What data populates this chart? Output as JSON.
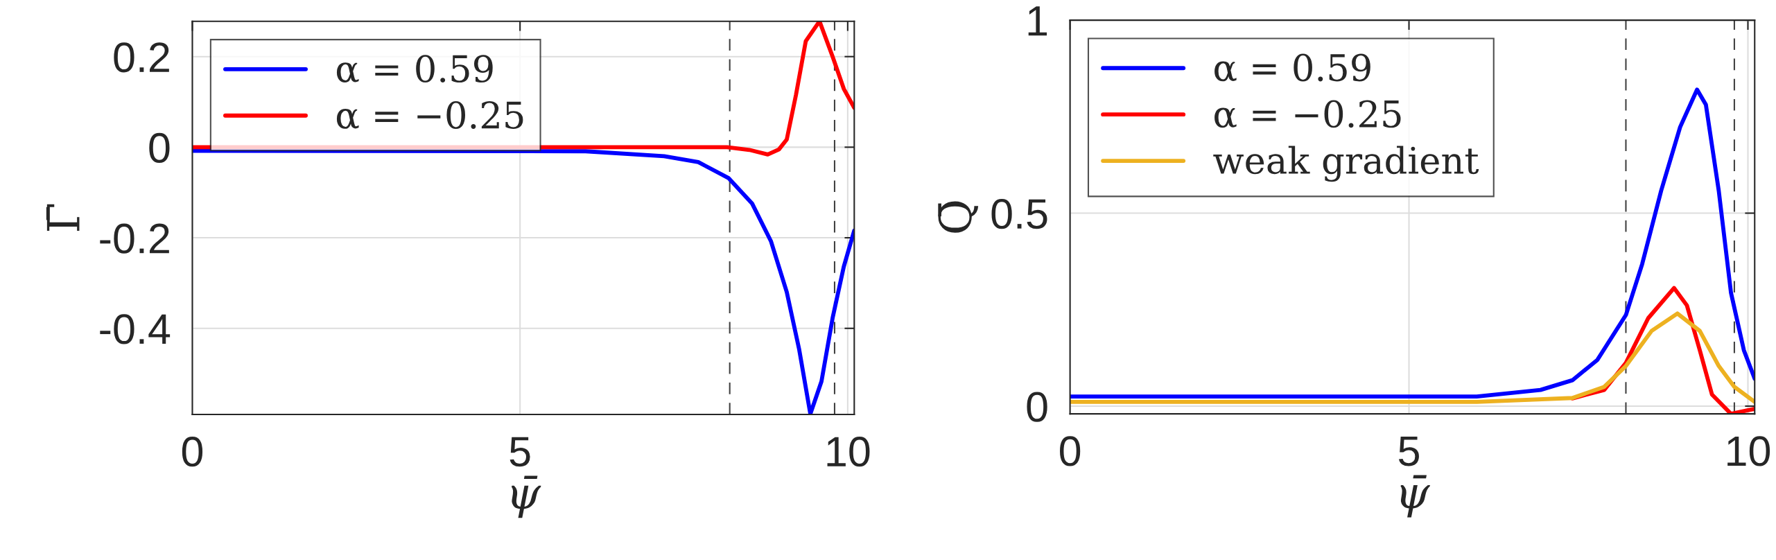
{
  "chart_data": [
    {
      "type": "line",
      "xlabel": "ψ̄",
      "ylabel": "Γ̄",
      "xlim": [
        0,
        10.1
      ],
      "ylim": [
        -0.59,
        0.278
      ],
      "xticks": [
        0,
        5,
        10
      ],
      "yticks": [
        -0.4,
        -0.2,
        0,
        0.2
      ],
      "grid": true,
      "legend": "top left",
      "line_style": "solid",
      "marker": "none",
      "ref_lines": [
        {
          "axis": "x",
          "value": 8.2,
          "color": "#404040",
          "line_style": "dashed"
        },
        {
          "axis": "x",
          "value": 9.8,
          "color": "#404040",
          "line_style": "dashed"
        }
      ],
      "series": [
        {
          "name": "α = 0.59",
          "color": "#0000ff",
          "x": [
            0,
            6,
            7.2,
            7.72,
            8.18,
            8.54,
            8.83,
            9.07,
            9.26,
            9.43,
            9.6,
            9.77,
            9.94,
            10.1
          ],
          "values": [
            -0.008,
            -0.009,
            -0.02,
            -0.033,
            -0.068,
            -0.124,
            -0.208,
            -0.32,
            -0.447,
            -0.589,
            -0.517,
            -0.377,
            -0.264,
            -0.184
          ]
        },
        {
          "name": "α = −0.25",
          "color": "#ff0000",
          "x": [
            0,
            6,
            8.16,
            8.5,
            8.78,
            8.95,
            9.07,
            9.21,
            9.36,
            9.57,
            9.77,
            9.94,
            10.1
          ],
          "values": [
            0,
            0,
            0,
            -0.006,
            -0.016,
            -0.005,
            0.017,
            0.115,
            0.234,
            0.278,
            0.2,
            0.129,
            0.087
          ]
        }
      ]
    },
    {
      "type": "line",
      "xlabel": "ψ̄",
      "ylabel": "Q̄",
      "xlim": [
        0,
        10.1
      ],
      "ylim": [
        -0.02,
        1
      ],
      "xticks": [
        0,
        5,
        10
      ],
      "yticks": [
        0,
        0.5,
        1
      ],
      "grid": true,
      "legend": "top left",
      "line_style": "solid",
      "marker": "none",
      "ref_lines": [
        {
          "axis": "x",
          "value": 8.2,
          "color": "#404040",
          "line_style": "dashed"
        },
        {
          "axis": "x",
          "value": 9.8,
          "color": "#404040",
          "line_style": "dashed"
        }
      ],
      "series": [
        {
          "name": "α = 0.59",
          "color": "#0000ff",
          "x": [
            0,
            3,
            6,
            6.94,
            7.41,
            7.78,
            8.2,
            8.44,
            8.72,
            9.0,
            9.25,
            9.38,
            9.57,
            9.75,
            9.94,
            10.1
          ],
          "values": [
            0.025,
            0.025,
            0.025,
            0.042,
            0.067,
            0.12,
            0.236,
            0.368,
            0.558,
            0.723,
            0.82,
            0.781,
            0.558,
            0.294,
            0.145,
            0.071
          ]
        },
        {
          "name": "α = −0.25",
          "color": "#ff0000",
          "x": [
            7.41,
            7.88,
            8.2,
            8.53,
            8.91,
            9.1,
            9.29,
            9.47,
            9.75,
            10.1
          ],
          "values": [
            0.02,
            0.042,
            0.112,
            0.228,
            0.306,
            0.261,
            0.145,
            0.03,
            -0.02,
            -0.007
          ]
        },
        {
          "name": "weak gradient",
          "color": "#edb120",
          "x": [
            0,
            3,
            6,
            7.41,
            7.88,
            8.2,
            8.58,
            8.96,
            9.29,
            9.57,
            9.8,
            10.1
          ],
          "values": [
            0.011,
            0.011,
            0.011,
            0.021,
            0.05,
            0.104,
            0.195,
            0.24,
            0.195,
            0.104,
            0.05,
            0.011
          ]
        }
      ]
    }
  ]
}
